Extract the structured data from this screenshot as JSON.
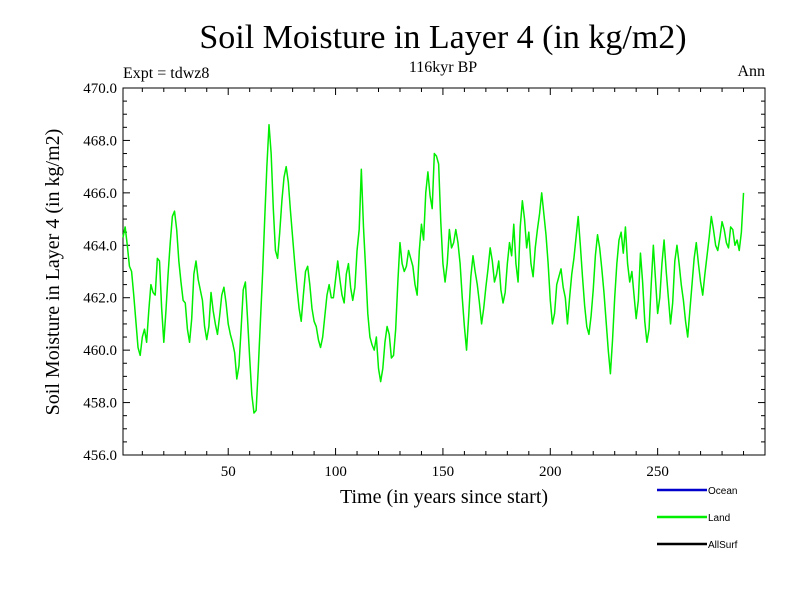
{
  "chart_data": {
    "type": "line",
    "title": "Soil Moisture in Layer 4 (in kg/m2)",
    "subtitle": "116kyr BP",
    "left_label": "Expt = tdwz8",
    "right_label": "Ann",
    "xlabel": "Time (in years since start)",
    "ylabel": "Soil Moisture in Layer 4 (in kg/m2)",
    "xlim": [
      1,
      300
    ],
    "ylim": [
      456.0,
      470.0
    ],
    "x_ticks": [
      50,
      100,
      150,
      200,
      250
    ],
    "y_ticks": [
      "456.0",
      "458.0",
      "460.0",
      "462.0",
      "464.0",
      "466.0",
      "468.0",
      "470.0"
    ],
    "legend_position": "bottom-right",
    "series": [
      {
        "name": "Ocean",
        "color": "#0000cc",
        "values": []
      },
      {
        "name": "Land",
        "color": "#00ee00",
        "values": [
          464.3,
          464.7,
          464.0,
          463.2,
          463.0,
          462.1,
          461.1,
          460.1,
          459.8,
          460.5,
          460.8,
          460.3,
          461.5,
          462.5,
          462.2,
          462.1,
          463.5,
          463.4,
          461.6,
          460.3,
          461.5,
          462.9,
          464.1,
          465.1,
          465.3,
          464.6,
          463.4,
          462.6,
          461.9,
          461.8,
          460.8,
          460.3,
          461.2,
          462.9,
          463.4,
          462.7,
          462.3,
          461.9,
          460.9,
          460.4,
          460.9,
          462.2,
          461.5,
          461.0,
          460.6,
          461.3,
          462.1,
          462.4,
          461.8,
          461.0,
          460.6,
          460.3,
          459.9,
          458.9,
          459.4,
          460.8,
          462.3,
          462.6,
          461.2,
          459.7,
          458.3,
          457.6,
          457.7,
          459.3,
          461.1,
          462.9,
          465.0,
          467.0,
          468.6,
          467.5,
          465.4,
          463.8,
          463.5,
          464.5,
          465.7,
          466.6,
          467.0,
          466.4,
          465.3,
          464.3,
          463.3,
          462.4,
          461.6,
          461.1,
          462.1,
          463.0,
          463.2,
          462.5,
          461.6,
          461.1,
          460.9,
          460.4,
          460.1,
          460.5,
          461.3,
          462.1,
          462.5,
          462.0,
          462.0,
          462.7,
          463.4,
          462.7,
          462.1,
          461.8,
          462.9,
          463.3,
          462.4,
          461.9,
          462.4,
          463.8,
          464.6,
          466.9,
          464.7,
          463.1,
          461.4,
          460.5,
          460.2,
          460.0,
          460.5,
          459.3,
          458.8,
          459.3,
          460.3,
          460.9,
          460.6,
          459.7,
          459.8,
          460.8,
          462.6,
          464.1,
          463.3,
          463.0,
          463.2,
          463.8,
          463.5,
          463.2,
          462.5,
          462.1,
          463.8,
          464.8,
          464.2,
          466.0,
          466.8,
          465.9,
          465.4,
          467.5,
          467.4,
          467.1,
          464.9,
          463.3,
          462.6,
          463.3,
          464.6,
          463.9,
          464.1,
          464.6,
          464.1,
          463.3,
          462.0,
          460.9,
          460.0,
          461.3,
          462.8,
          463.6,
          463.0,
          462.5,
          461.8,
          461.0,
          461.6,
          462.4,
          463.1,
          463.9,
          463.4,
          462.6,
          462.9,
          463.4,
          462.3,
          461.8,
          462.2,
          463.3,
          464.1,
          463.6,
          464.8,
          463.3,
          462.6,
          464.7,
          465.7,
          465.0,
          463.9,
          464.5,
          463.3,
          462.8,
          463.9,
          464.6,
          465.2,
          466.0,
          465.2,
          464.4,
          463.3,
          461.9,
          461.0,
          461.4,
          462.5,
          462.8,
          463.1,
          462.4,
          462.0,
          461.0,
          462.0,
          462.9,
          463.5,
          464.3,
          465.1,
          464.0,
          462.8,
          461.7,
          460.9,
          460.6,
          461.3,
          462.3,
          463.6,
          464.4,
          463.9,
          463.1,
          462.2,
          461.1,
          460.0,
          459.1,
          460.4,
          462.0,
          463.3,
          464.2,
          464.5,
          463.7,
          464.7,
          463.3,
          462.6,
          463.0,
          462.1,
          461.2,
          461.9,
          463.7,
          462.6,
          461.1,
          460.3,
          460.8,
          462.5,
          464.0,
          462.7,
          461.4,
          462.0,
          463.3,
          464.2,
          463.0,
          462.0,
          461.0,
          461.8,
          463.4,
          464.0,
          463.3,
          462.5,
          461.9,
          461.1,
          460.5,
          461.5,
          462.5,
          463.5,
          464.1,
          463.3,
          462.6,
          462.1,
          462.9,
          463.6,
          464.3,
          465.1,
          464.6,
          464.0,
          463.8,
          464.3,
          464.9,
          464.6,
          464.1,
          463.9,
          464.7,
          464.6,
          464.0,
          464.2,
          463.8,
          464.5,
          466.0
        ]
      },
      {
        "name": "AllSurf",
        "color": "#000000",
        "values": []
      }
    ]
  }
}
